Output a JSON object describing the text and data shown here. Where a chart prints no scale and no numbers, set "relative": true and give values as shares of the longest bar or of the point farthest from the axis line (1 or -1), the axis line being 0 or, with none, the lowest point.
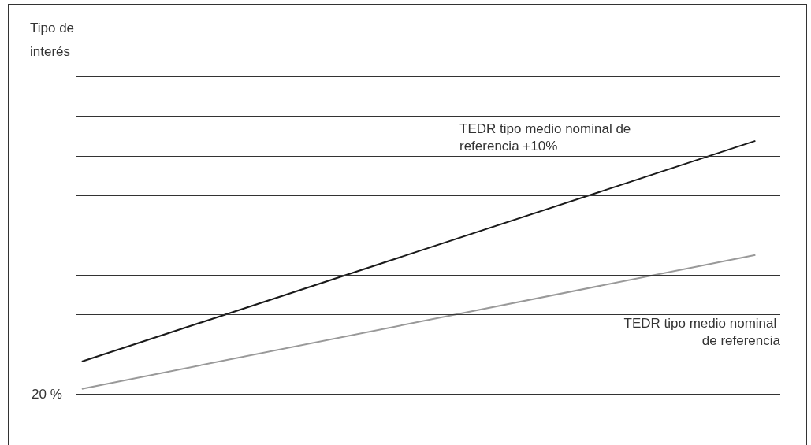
{
  "chart_data": {
    "type": "line",
    "relative": true,
    "categories": [
      null,
      null
    ],
    "series": [
      {
        "name": "TEDR tipo medio nominal de referencia +10%",
        "color": "#1a1a1a",
        "values": [
          0.11,
          1
        ]
      },
      {
        "name": "TEDR tipo medio nominal de referencia",
        "color": "#999999",
        "values": [
          0,
          0.54
        ]
      }
    ],
    "ref_lines": [
      {
        "axis": "y",
        "value": -0.02,
        "label": null,
        "color": "#333333"
      },
      {
        "axis": "y",
        "value": 0.14,
        "label": null,
        "color": "#333333"
      },
      {
        "axis": "y",
        "value": 0.3,
        "label": null,
        "color": "#333333"
      },
      {
        "axis": "y",
        "value": 0.46,
        "label": null,
        "color": "#333333"
      },
      {
        "axis": "y",
        "value": 0.62,
        "label": null,
        "color": "#333333"
      },
      {
        "axis": "y",
        "value": 0.78,
        "label": null,
        "color": "#333333"
      },
      {
        "axis": "y",
        "value": 0.94,
        "label": null,
        "color": "#333333"
      },
      {
        "axis": "y",
        "value": 1.1,
        "label": null,
        "color": "#333333"
      },
      {
        "axis": "y",
        "value": 1.26,
        "label": null,
        "color": "#333333"
      }
    ],
    "annotations": [
      "Tipo de interés",
      "20 %"
    ],
    "legend": false,
    "marker": "none",
    "line_style": "solid"
  }
}
